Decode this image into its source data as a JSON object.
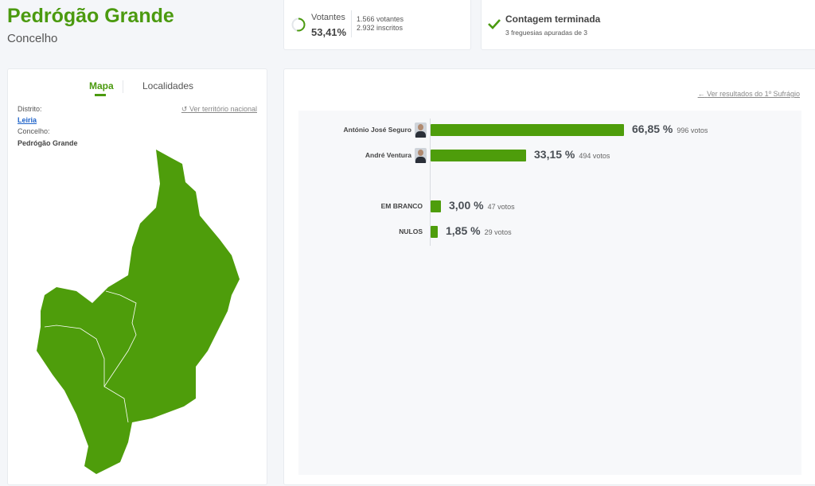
{
  "header": {
    "title": "Pedrógão Grande",
    "subtitle": "Concelho"
  },
  "turnout": {
    "label": "Votantes",
    "percent": "53,41%",
    "percent_value": 53.41,
    "voters": "1.566 votantes",
    "registered": "2.932 inscritos"
  },
  "status": {
    "title": "Contagem terminada",
    "detail": "3 freguesias apuradas de 3"
  },
  "left_panel": {
    "tabs": [
      {
        "label": "Mapa",
        "active": true
      },
      {
        "label": "Localidades",
        "active": false
      }
    ],
    "national_link": "Ver território nacional",
    "district_label": "Distrito:",
    "district": "Leiria",
    "municipality_label": "Concelho:",
    "municipality": "Pedrógão Grande"
  },
  "results": {
    "first_round_link": "Ver resultados do 1º Sufrágio",
    "rows": [
      {
        "name": "António José Seguro",
        "percent": "66,85 %",
        "value": 66.85,
        "votes": "996 votos",
        "avatar": true
      },
      {
        "name": "André Ventura",
        "percent": "33,15 %",
        "value": 33.15,
        "votes": "494 votos",
        "avatar": true
      },
      {
        "name": "EM BRANCO",
        "percent": "3,00 %",
        "value": 3.0,
        "votes": "47 votos",
        "avatar": false
      },
      {
        "name": "NULOS",
        "percent": "1,85 %",
        "value": 1.85,
        "votes": "29 votos",
        "avatar": false
      }
    ]
  },
  "colors": {
    "accent": "#4b9a0f",
    "bar": "#4e9d0b",
    "link": "#1f63c9"
  }
}
